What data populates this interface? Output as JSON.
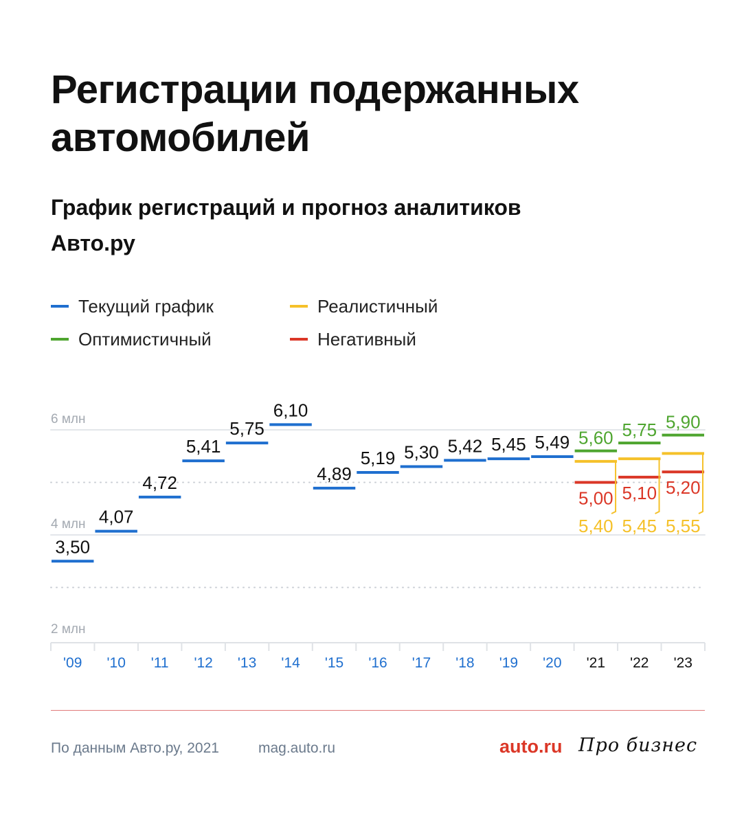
{
  "header": {
    "title": "Регистрации подержанных автомобилей",
    "subtitle": "График регистраций и прогноз аналитиков Авто.ру"
  },
  "legend": [
    {
      "label": "Текущий график",
      "color": "#1f6fcf"
    },
    {
      "label": "Реалистичный",
      "color": "#f5c12a"
    },
    {
      "label": "Оптимистичный",
      "color": "#4ea52f"
    },
    {
      "label": "Негативный",
      "color": "#db3727"
    }
  ],
  "chart_data": {
    "type": "step",
    "categories": [
      "'09",
      "'10",
      "'11",
      "'12",
      "'13",
      "'14",
      "'15",
      "'16",
      "'17",
      "'18",
      "'19",
      "'20",
      "'21",
      "'22",
      "'23"
    ],
    "y_ticks": [
      {
        "value": 6,
        "label": "6 млн"
      },
      {
        "value": 4,
        "label": "4 млн"
      },
      {
        "value": 2,
        "label": "2 млн"
      }
    ],
    "ylim": [
      1.6,
      6.3
    ],
    "series": [
      {
        "name": "Текущий график",
        "color": "#1f6fcf",
        "values": [
          3.5,
          4.07,
          4.72,
          5.41,
          5.75,
          6.1,
          4.89,
          5.19,
          5.3,
          5.42,
          5.45,
          5.49,
          null,
          null,
          null
        ],
        "labels": [
          "3,50",
          "4,07",
          "4,72",
          "5,41",
          "5,75",
          "6,10",
          "4,89",
          "5,19",
          "5,30",
          "5,42",
          "5,45",
          "5,49",
          "",
          "",
          ""
        ]
      },
      {
        "name": "Оптимистичный",
        "color": "#4ea52f",
        "values": [
          null,
          null,
          null,
          null,
          null,
          null,
          null,
          null,
          null,
          null,
          null,
          null,
          5.6,
          5.75,
          5.9
        ],
        "labels": [
          "",
          "",
          "",
          "",
          "",
          "",
          "",
          "",
          "",
          "",
          "",
          "",
          "5,60",
          "5,75",
          "5,90"
        ]
      },
      {
        "name": "Реалистичный",
        "color": "#f5c12a",
        "values": [
          null,
          null,
          null,
          null,
          null,
          null,
          null,
          null,
          null,
          null,
          null,
          null,
          5.4,
          5.45,
          5.55
        ],
        "labels": [
          "",
          "",
          "",
          "",
          "",
          "",
          "",
          "",
          "",
          "",
          "",
          "",
          "5,40",
          "5,45",
          "5,55"
        ]
      },
      {
        "name": "Негативный",
        "color": "#db3727",
        "values": [
          null,
          null,
          null,
          null,
          null,
          null,
          null,
          null,
          null,
          null,
          null,
          null,
          5.0,
          5.1,
          5.2
        ],
        "labels": [
          "",
          "",
          "",
          "",
          "",
          "",
          "",
          "",
          "",
          "",
          "",
          "",
          "5,00",
          "5,10",
          "5,20"
        ]
      }
    ],
    "category_colors": {
      "history": "#1f6fcf",
      "forecast": "#111111"
    },
    "grid_color": "#e3e6ea"
  },
  "footer": {
    "source": "По данным Авто.ру, 2021",
    "site": "mag.auto.ru",
    "brand_auto": "auto.ru",
    "brand_pro": "Про бизнес"
  }
}
